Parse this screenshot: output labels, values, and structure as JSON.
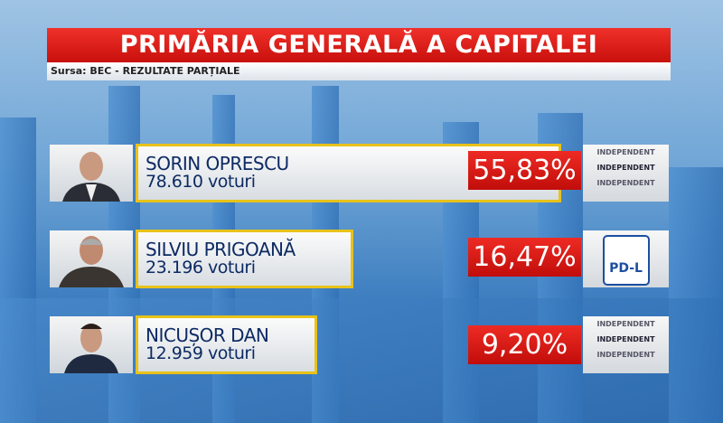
{
  "header": {
    "title": "PRIMĂRIA GENERALĂ A CAPITALEI",
    "source": "Sursa: BEC - REZULTATE PARȚIALE"
  },
  "candidates": [
    {
      "name": "SORIN OPRESCU",
      "votes": "78.610 voturi",
      "percent": "55,83%",
      "party": "INDEPENDENT"
    },
    {
      "name": "SILVIU PRIGOANĂ",
      "votes": "23.196 voturi",
      "percent": "16,47%",
      "party": "PD-L"
    },
    {
      "name": "NICUȘOR DAN",
      "votes": "12.959 voturi",
      "percent": "9,20%",
      "party": "INDEPENDENT"
    }
  ]
}
